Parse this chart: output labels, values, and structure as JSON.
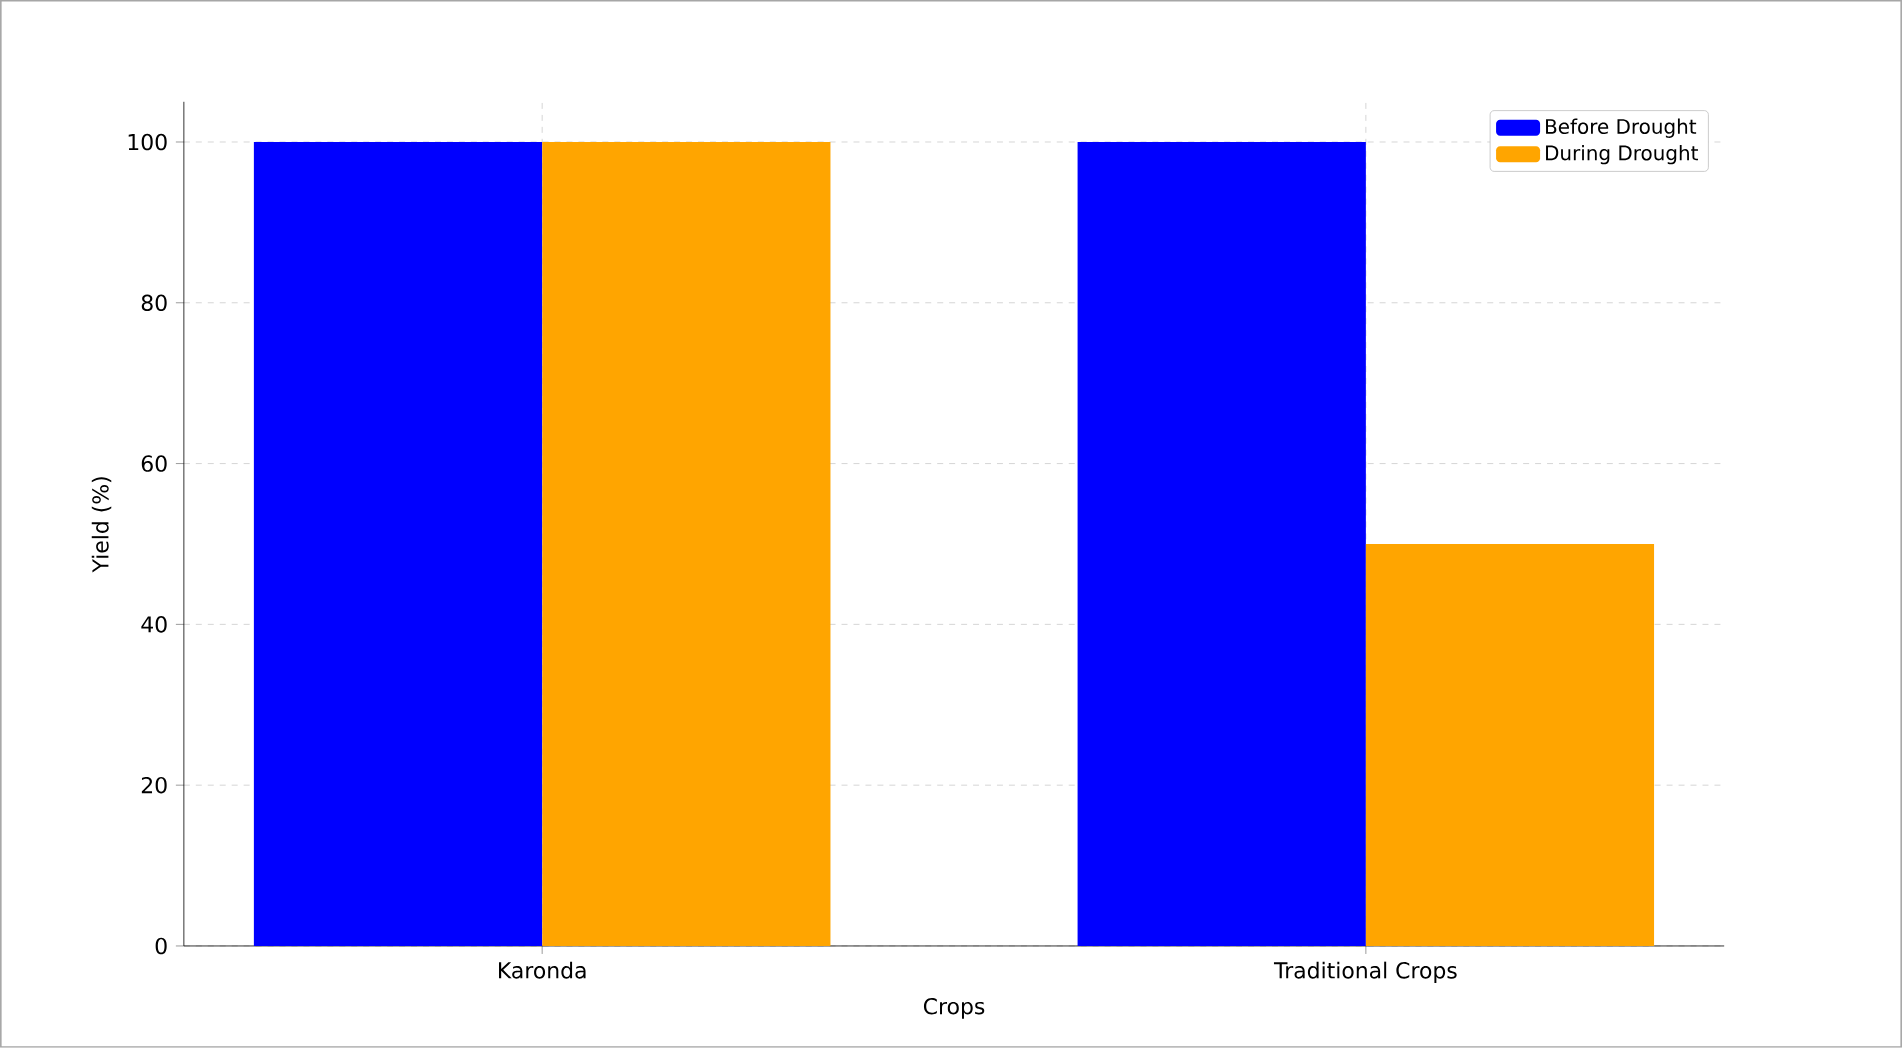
{
  "chart_data": {
    "type": "bar",
    "xlabel": "Crops",
    "ylabel": "Yield (%)",
    "categories": [
      "Karonda",
      "Traditional Crops"
    ],
    "series": [
      {
        "name": "Before Drought",
        "color": "#0000ff",
        "values": [
          100,
          100
        ]
      },
      {
        "name": "During Drought",
        "color": "#ffa500",
        "values": [
          100,
          50
        ]
      }
    ],
    "ylim": [
      0,
      105
    ],
    "yticks": [
      0,
      20,
      40,
      60,
      80,
      100
    ],
    "grid": true,
    "legend": "top right"
  }
}
